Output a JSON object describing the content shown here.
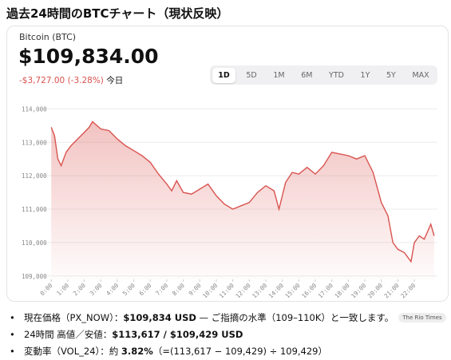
{
  "heading": "過去24時間のBTCチャート（現状反映）",
  "card": {
    "name": "Bitcoin (BTC)",
    "price": "$109,834.00",
    "change": "-$3,727.00 (-3.28%)",
    "period": "今日",
    "tabs": [
      "1D",
      "5D",
      "1M",
      "6M",
      "YTD",
      "1Y",
      "5Y",
      "MAX"
    ],
    "selected_tab": 0
  },
  "chart_data": {
    "type": "line",
    "color": "#d9534f",
    "grid": true,
    "x": [
      0,
      0.2,
      0.4,
      0.6,
      0.9,
      1.2,
      1.6,
      2.0,
      2.3,
      2.5,
      3.0,
      3.5,
      4.0,
      4.5,
      5.0,
      5.5,
      6.0,
      6.5,
      7.0,
      7.3,
      7.6,
      8.0,
      8.5,
      9.0,
      9.5,
      10.0,
      10.5,
      11.0,
      11.5,
      12.0,
      12.5,
      13.0,
      13.5,
      13.8,
      14.2,
      14.6,
      15.0,
      15.5,
      16.0,
      16.5,
      17.0,
      17.5,
      18.0,
      18.5,
      19.0,
      19.5,
      20.0,
      20.4,
      20.7,
      21.0,
      21.4,
      21.8,
      22.0,
      22.3,
      22.6,
      23.0,
      23.2
    ],
    "values": [
      113450,
      113200,
      112500,
      112300,
      112700,
      112900,
      113100,
      113300,
      113450,
      113617,
      113400,
      113350,
      113100,
      112900,
      112750,
      112600,
      112400,
      112050,
      111750,
      111550,
      111850,
      111500,
      111450,
      111600,
      111750,
      111400,
      111150,
      111000,
      111100,
      111200,
      111500,
      111700,
      111550,
      111000,
      111800,
      112100,
      112050,
      112250,
      112050,
      112300,
      112700,
      112650,
      112600,
      112500,
      112600,
      112100,
      111200,
      110800,
      110000,
      109800,
      109700,
      109429,
      110000,
      110200,
      110100,
      110550,
      110200
    ],
    "xlim": [
      -0.3,
      23.4
    ],
    "xticks": [
      {
        "value": 0,
        "label": "0:00"
      },
      {
        "value": 1,
        "label": "1:00"
      },
      {
        "value": 2,
        "label": "2:00"
      },
      {
        "value": 3,
        "label": "3:00"
      },
      {
        "value": 4,
        "label": "4:00"
      },
      {
        "value": 5,
        "label": "5:00"
      },
      {
        "value": 6,
        "label": "6:00"
      },
      {
        "value": 7,
        "label": "7:00"
      },
      {
        "value": 8,
        "label": "8:00"
      },
      {
        "value": 9,
        "label": "9:00"
      },
      {
        "value": 10,
        "label": "10:00"
      },
      {
        "value": 11,
        "label": "11:00"
      },
      {
        "value": 12,
        "label": "12:00"
      },
      {
        "value": 13,
        "label": "13:00"
      },
      {
        "value": 14,
        "label": "14:00"
      },
      {
        "value": 15,
        "label": "15:00"
      },
      {
        "value": 16,
        "label": "16:00"
      },
      {
        "value": 17,
        "label": "17:00"
      },
      {
        "value": 18,
        "label": "18:00"
      },
      {
        "value": 19,
        "label": "19:00"
      },
      {
        "value": 20,
        "label": "20:00"
      },
      {
        "value": 21,
        "label": "21:00"
      },
      {
        "value": 22,
        "label": "22:00"
      }
    ],
    "ylim": [
      108900,
      114200
    ],
    "yticks": [
      {
        "value": 109000,
        "label": "109,000"
      },
      {
        "value": 110000,
        "label": "110,000"
      },
      {
        "value": 111000,
        "label": "111,000"
      },
      {
        "value": 112000,
        "label": "112,000"
      },
      {
        "value": 113000,
        "label": "113,000"
      },
      {
        "value": 114000,
        "label": "114,000"
      }
    ]
  },
  "bullets": [
    {
      "parts": [
        {
          "text": "現在価格（PX_NOW）：",
          "bold": false
        },
        {
          "text": "$109,834 USD",
          "bold": true
        },
        {
          "text": " — ご指摘の水準（109–110K）と一致します。",
          "bold": false
        }
      ],
      "source": "The Rio Times"
    },
    {
      "parts": [
        {
          "text": "24時間 高値／安値：",
          "bold": false
        },
        {
          "text": "$113,617 / $109,429 USD",
          "bold": true
        }
      ]
    },
    {
      "parts": [
        {
          "text": "変動率（VOL_24）：約 ",
          "bold": false
        },
        {
          "text": "3.82%",
          "bold": true
        },
        {
          "text": "（=(113,617 − 109,429) ÷ 109,429）",
          "bold": false
        }
      ]
    }
  ]
}
